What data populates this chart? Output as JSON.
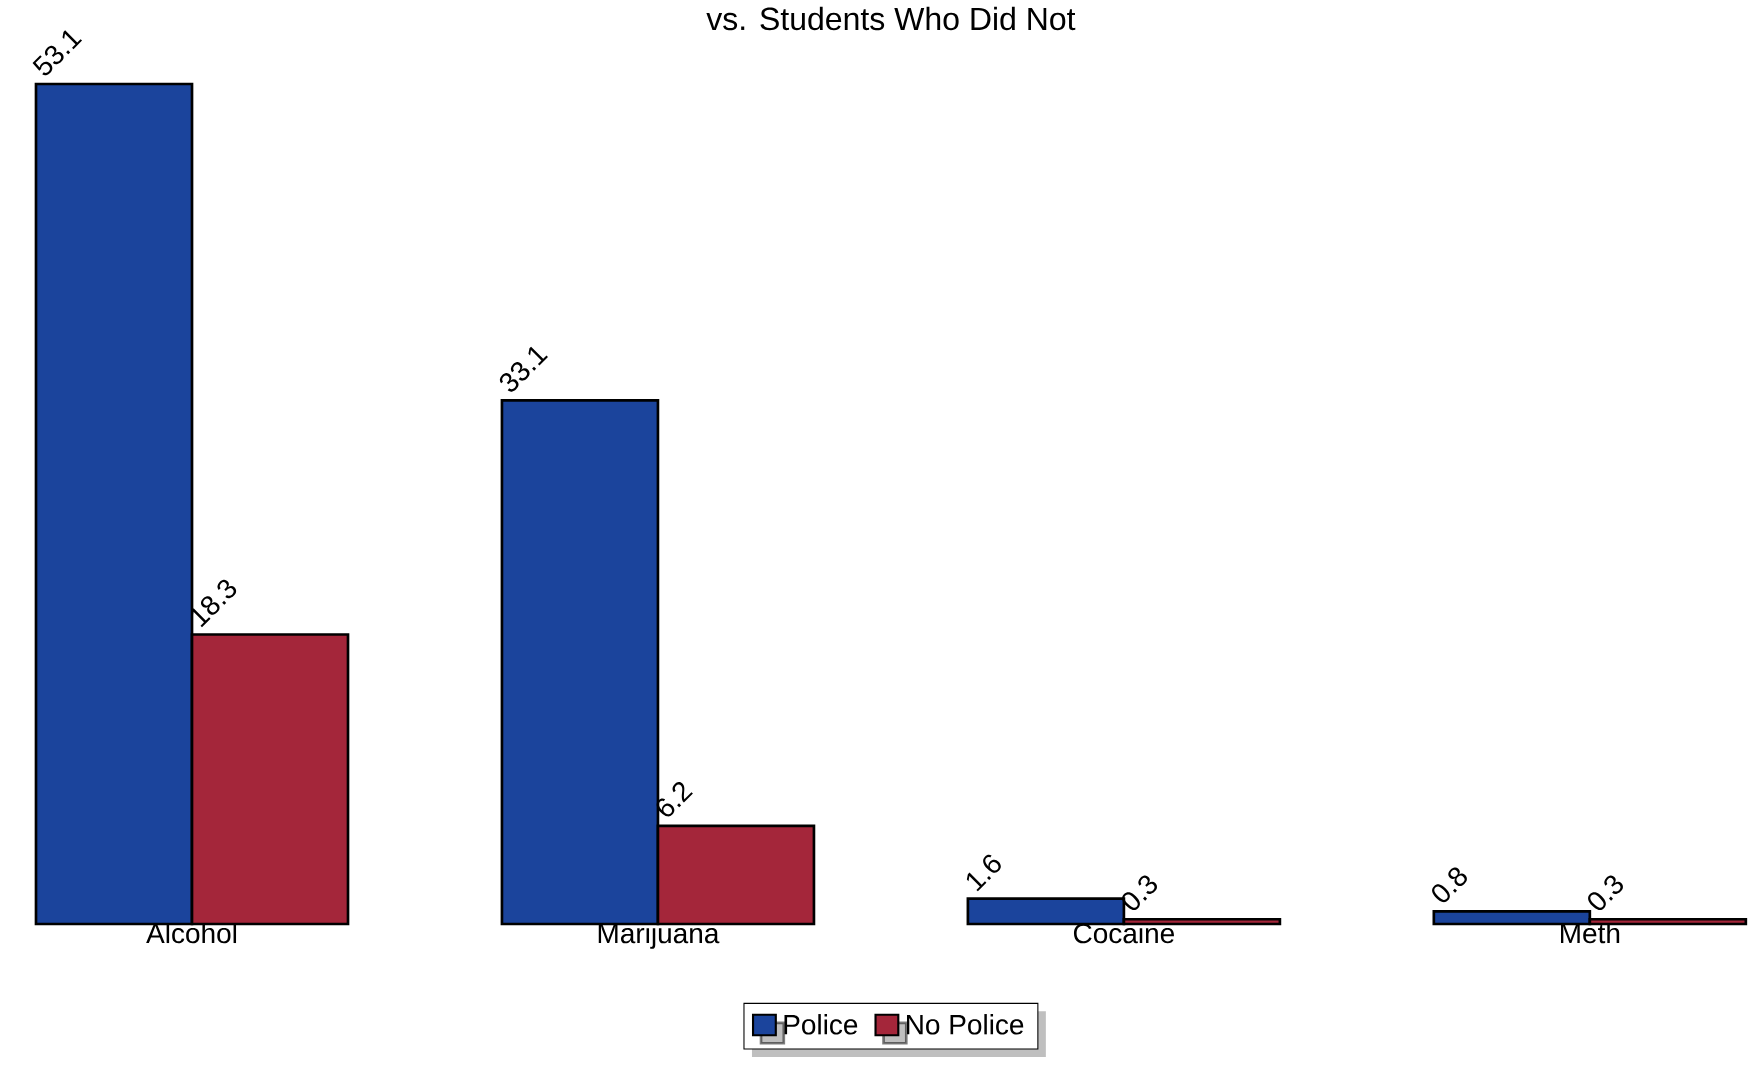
{
  "chart_data": {
    "type": "bar",
    "title": "vs. Students Who Did Not",
    "categories": [
      "Alcohol",
      "Marijuana",
      "Cocaine",
      "Meth"
    ],
    "series": [
      {
        "name": "Police",
        "color": "#1b449c",
        "values": [
          53.1,
          33.1,
          1.6,
          0.8
        ]
      },
      {
        "name": "No Police",
        "color": "#a4263a",
        "values": [
          18.3,
          6.2,
          0.3,
          0.3
        ]
      }
    ],
    "data_labels": true,
    "legend": "bottom"
  }
}
